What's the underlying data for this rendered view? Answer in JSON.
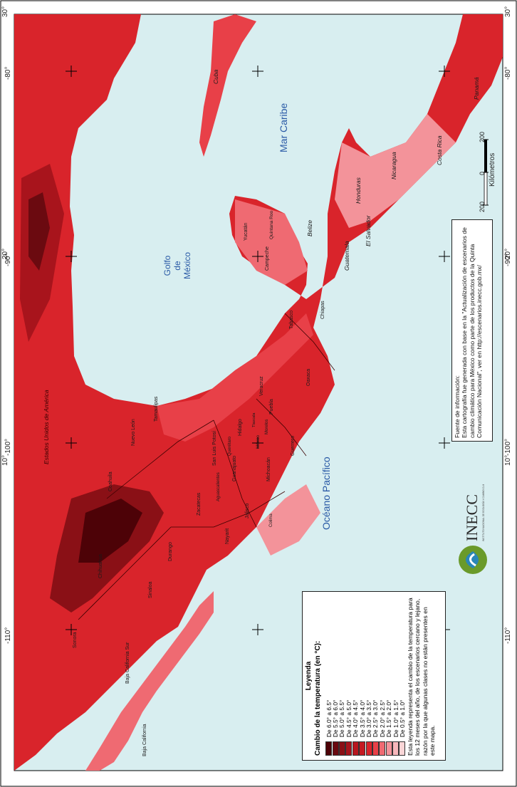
{
  "map": {
    "water_labels": {
      "golfo": [
        "Golfo",
        "de",
        "México"
      ],
      "mar_caribe": "Mar Caribe",
      "oceano": "Océano Pacífico",
      "usa": "Estados Unidos de América"
    },
    "lat_ticks": [
      "30°",
      "20°",
      "10°"
    ],
    "lon_ticks": [
      "-80°",
      "-90°",
      "-100°",
      "-110°"
    ],
    "states": [
      "Baja California",
      "Baja California Sur",
      "Sonora",
      "Chihuahua",
      "Coahuila",
      "Nuevo León",
      "Tamaulipas",
      "Sinaloa",
      "Durango",
      "Zacatecas",
      "San Luis Potosí",
      "Nayarit",
      "Jalisco",
      "Aguascalientes",
      "Guanajuato",
      "Querétaro",
      "Hidalgo",
      "Michoacán",
      "Colima",
      "México",
      "Tlaxcala",
      "Puebla",
      "Morelos",
      "Veracruz",
      "Guerrero",
      "Oaxaca",
      "Chiapas",
      "Tabasco",
      "Campeche",
      "Yucatán",
      "Quintana Roo"
    ],
    "countries": [
      "Cuba",
      "Belize",
      "Guatemala",
      "Honduras",
      "El Salvador",
      "Nicaragua",
      "Costa Rica",
      "Panamá"
    ],
    "palette": {
      "water": "#d8eef0",
      "c1": "#4d0207",
      "c2": "#6b0a10",
      "c3": "#8a1016",
      "c4": "#a8141c",
      "c5": "#c41a22",
      "c6": "#d9242b",
      "c7": "#e84048",
      "c8": "#ef6a72",
      "c9": "#f3939a",
      "c10": "#f7b7bb",
      "c11": "#fad5d6"
    }
  },
  "legend": {
    "title": "Leyenda",
    "subtitle": "Cambio de la temperatura (en °C):",
    "classes": [
      {
        "label": "De 6.0° a 6.5°",
        "color": "#4d0207"
      },
      {
        "label": "De 5.5° a 6.0°",
        "color": "#6b0a10"
      },
      {
        "label": "De 5.0° a 5.5°",
        "color": "#8a1016"
      },
      {
        "label": "De 4.5° a 5.0°",
        "color": "#a8141c"
      },
      {
        "label": "De 4.0° a 4.5°",
        "color": "#b8171f"
      },
      {
        "label": "De 3.5° a 4.0°",
        "color": "#c41a22"
      },
      {
        "label": "De 3.0° a 3.5°",
        "color": "#d9242b"
      },
      {
        "label": "De 2.5° a 3.0°",
        "color": "#e84048"
      },
      {
        "label": "De 2.0° a 2.5°",
        "color": "#ef6a72"
      },
      {
        "label": "De 1.5° a 2.0°",
        "color": "#f3939a"
      },
      {
        "label": "De 1.0° a 1.5°",
        "color": "#f7b7bb"
      },
      {
        "label": "De 0.5° a 1.0°",
        "color": "#fad5d6"
      }
    ],
    "note": "Esta leyenda representa el cambio de la temperatura para los 12 meses del año, de los escenarios cercano y lejano, razón por la que algunas clases no están presentes en este mapa."
  },
  "source": {
    "heading": "Fuente de información:",
    "text": "Esta cartografía fue generada con base en la \"Actualización de escenarios de cambio climático para México como parte de los productos de la Quinta Comunicación Nacional\", ver en http://escenarios.inecc.gob.mx/"
  },
  "logo": {
    "text": "INECC",
    "sub": "INSTITUTO NACIONAL DE ECOLOGÍA Y CAMBIO CLIMÁTICO"
  },
  "scale": {
    "unit": "Kilómetros",
    "ticks": [
      "200",
      "0",
      "200"
    ]
  }
}
